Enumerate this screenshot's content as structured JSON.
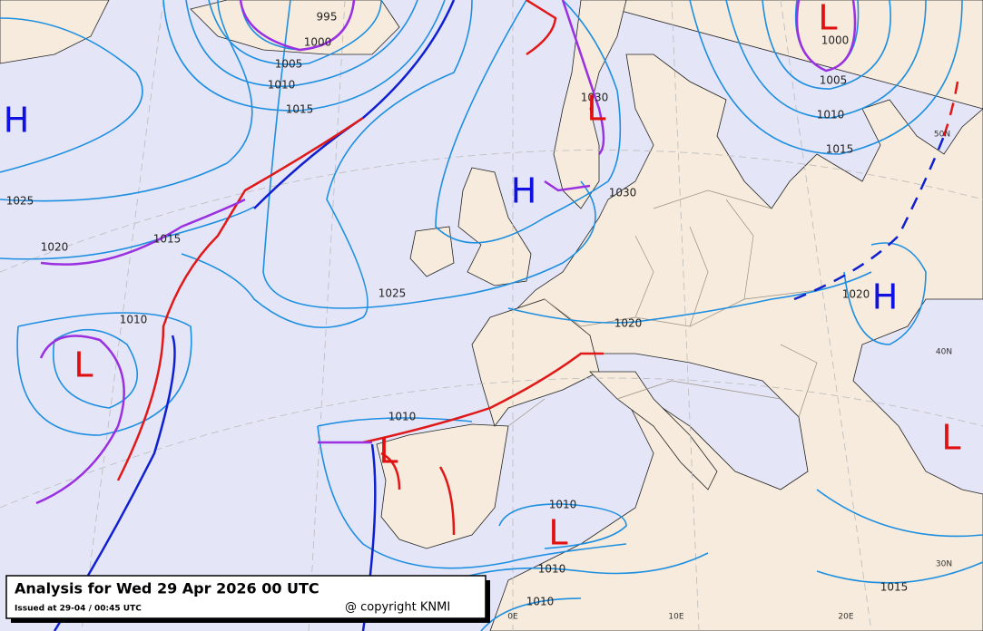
{
  "title": "Analysis for Wed 29 Apr 2026 00 UTC",
  "issued": "Issued at 29-04 / 00:45 UTC",
  "copyright": "@ copyright KNMI",
  "pressure_systems": [
    "H",
    "L",
    "L",
    "H",
    "H",
    "L",
    "L",
    "L",
    "L"
  ],
  "isobar_labels": [
    "995",
    "1000",
    "1005",
    "1010",
    "1015",
    "1025",
    "1020",
    "1015",
    "1010",
    "1025",
    "1020",
    "1030",
    "1030",
    "1020",
    "1000",
    "1005",
    "1010",
    "1015",
    "1010",
    "1010",
    "1010",
    "1010",
    "1015"
  ],
  "graticule_labels": [
    "50N",
    "40N",
    "30N",
    "0E",
    "10E",
    "20E"
  ]
}
